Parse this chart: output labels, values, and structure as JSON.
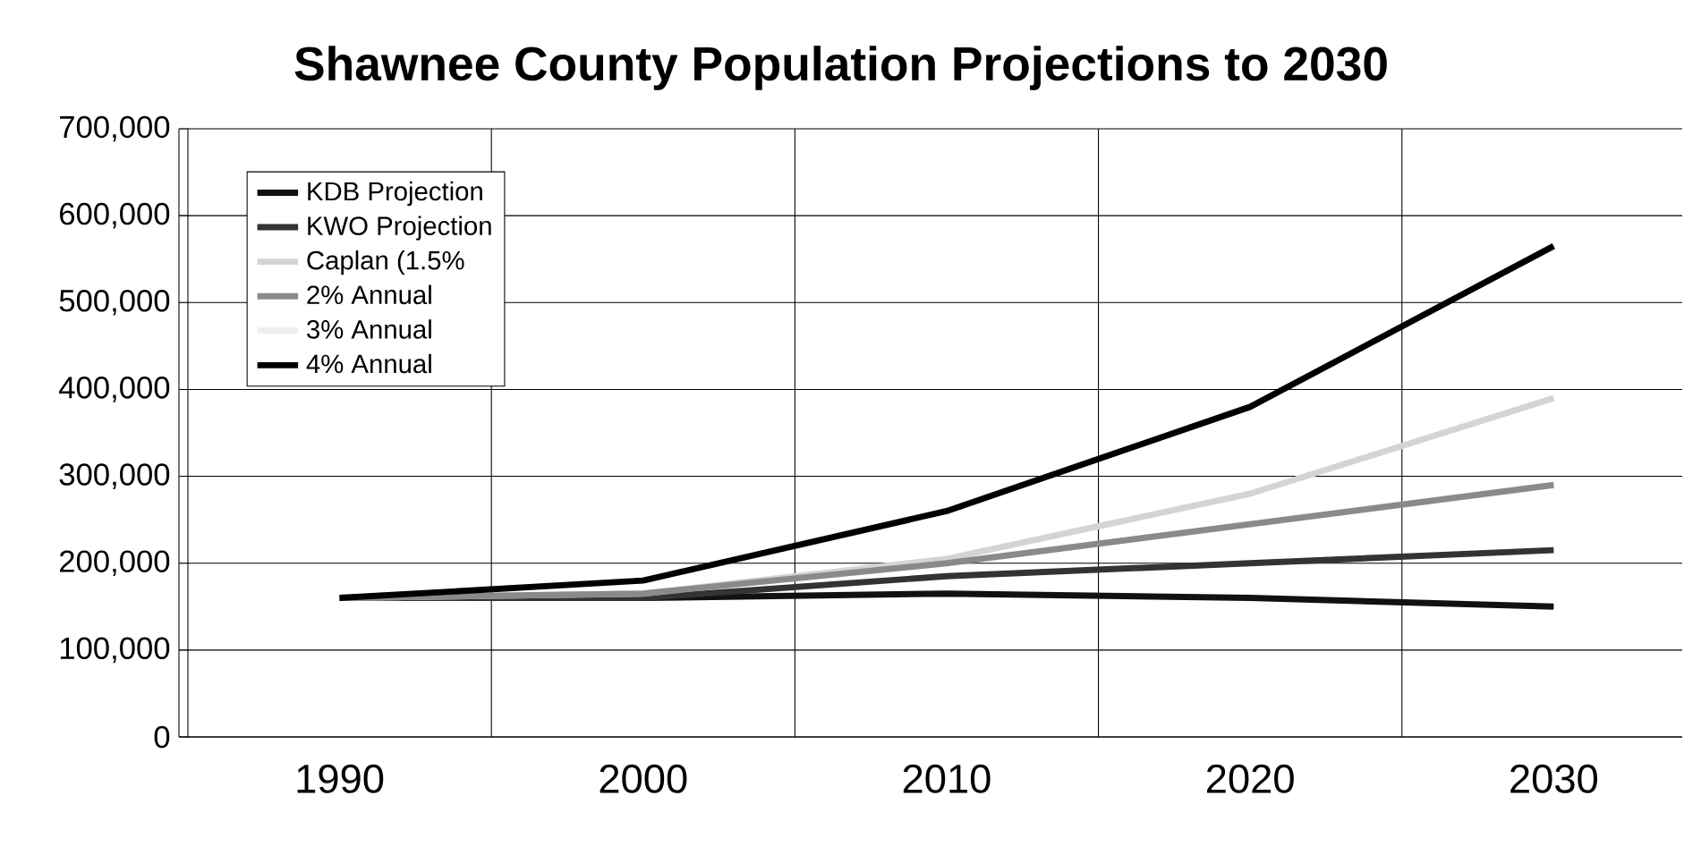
{
  "chart_data": {
    "type": "line",
    "title": "Shawnee County Population Projections to 2030",
    "categories": [
      "1990",
      "2000",
      "2010",
      "2020",
      "2030"
    ],
    "series": [
      {
        "name": "KDB Projection",
        "color": "#111111",
        "values": [
          160000,
          160000,
          165000,
          160000,
          150000
        ]
      },
      {
        "name": "KWO Projection",
        "color": "#333333",
        "values": [
          160000,
          160000,
          185000,
          200000,
          215000
        ]
      },
      {
        "name": "Caplan (1.5%",
        "color": "#d4d4d4",
        "values": [
          160000,
          165000,
          205000,
          280000,
          390000
        ]
      },
      {
        "name": "2% Annual",
        "color": "#8a8a8a",
        "values": [
          160000,
          165000,
          200000,
          245000,
          290000
        ]
      },
      {
        "name": "3% Annual",
        "color": "#eeeeee",
        "values": [
          null,
          null,
          null,
          null,
          null
        ]
      },
      {
        "name": "4% Annual",
        "color": "#000000",
        "values": [
          160000,
          180000,
          260000,
          380000,
          565000
        ]
      }
    ],
    "ylim": [
      0,
      700000
    ],
    "yticks": [
      {
        "value": 0,
        "label": "0"
      },
      {
        "value": 100000,
        "label": "100,000"
      },
      {
        "value": 200000,
        "label": "200,000"
      },
      {
        "value": 300000,
        "label": "300,000"
      },
      {
        "value": 400000,
        "label": "400,000"
      },
      {
        "value": 500000,
        "label": "500,000"
      },
      {
        "value": 600000,
        "label": "600,000"
      },
      {
        "value": 700000,
        "label": "700,000"
      }
    ],
    "grid": true,
    "legend": "top left",
    "marker": "none",
    "line_style": "solid"
  }
}
